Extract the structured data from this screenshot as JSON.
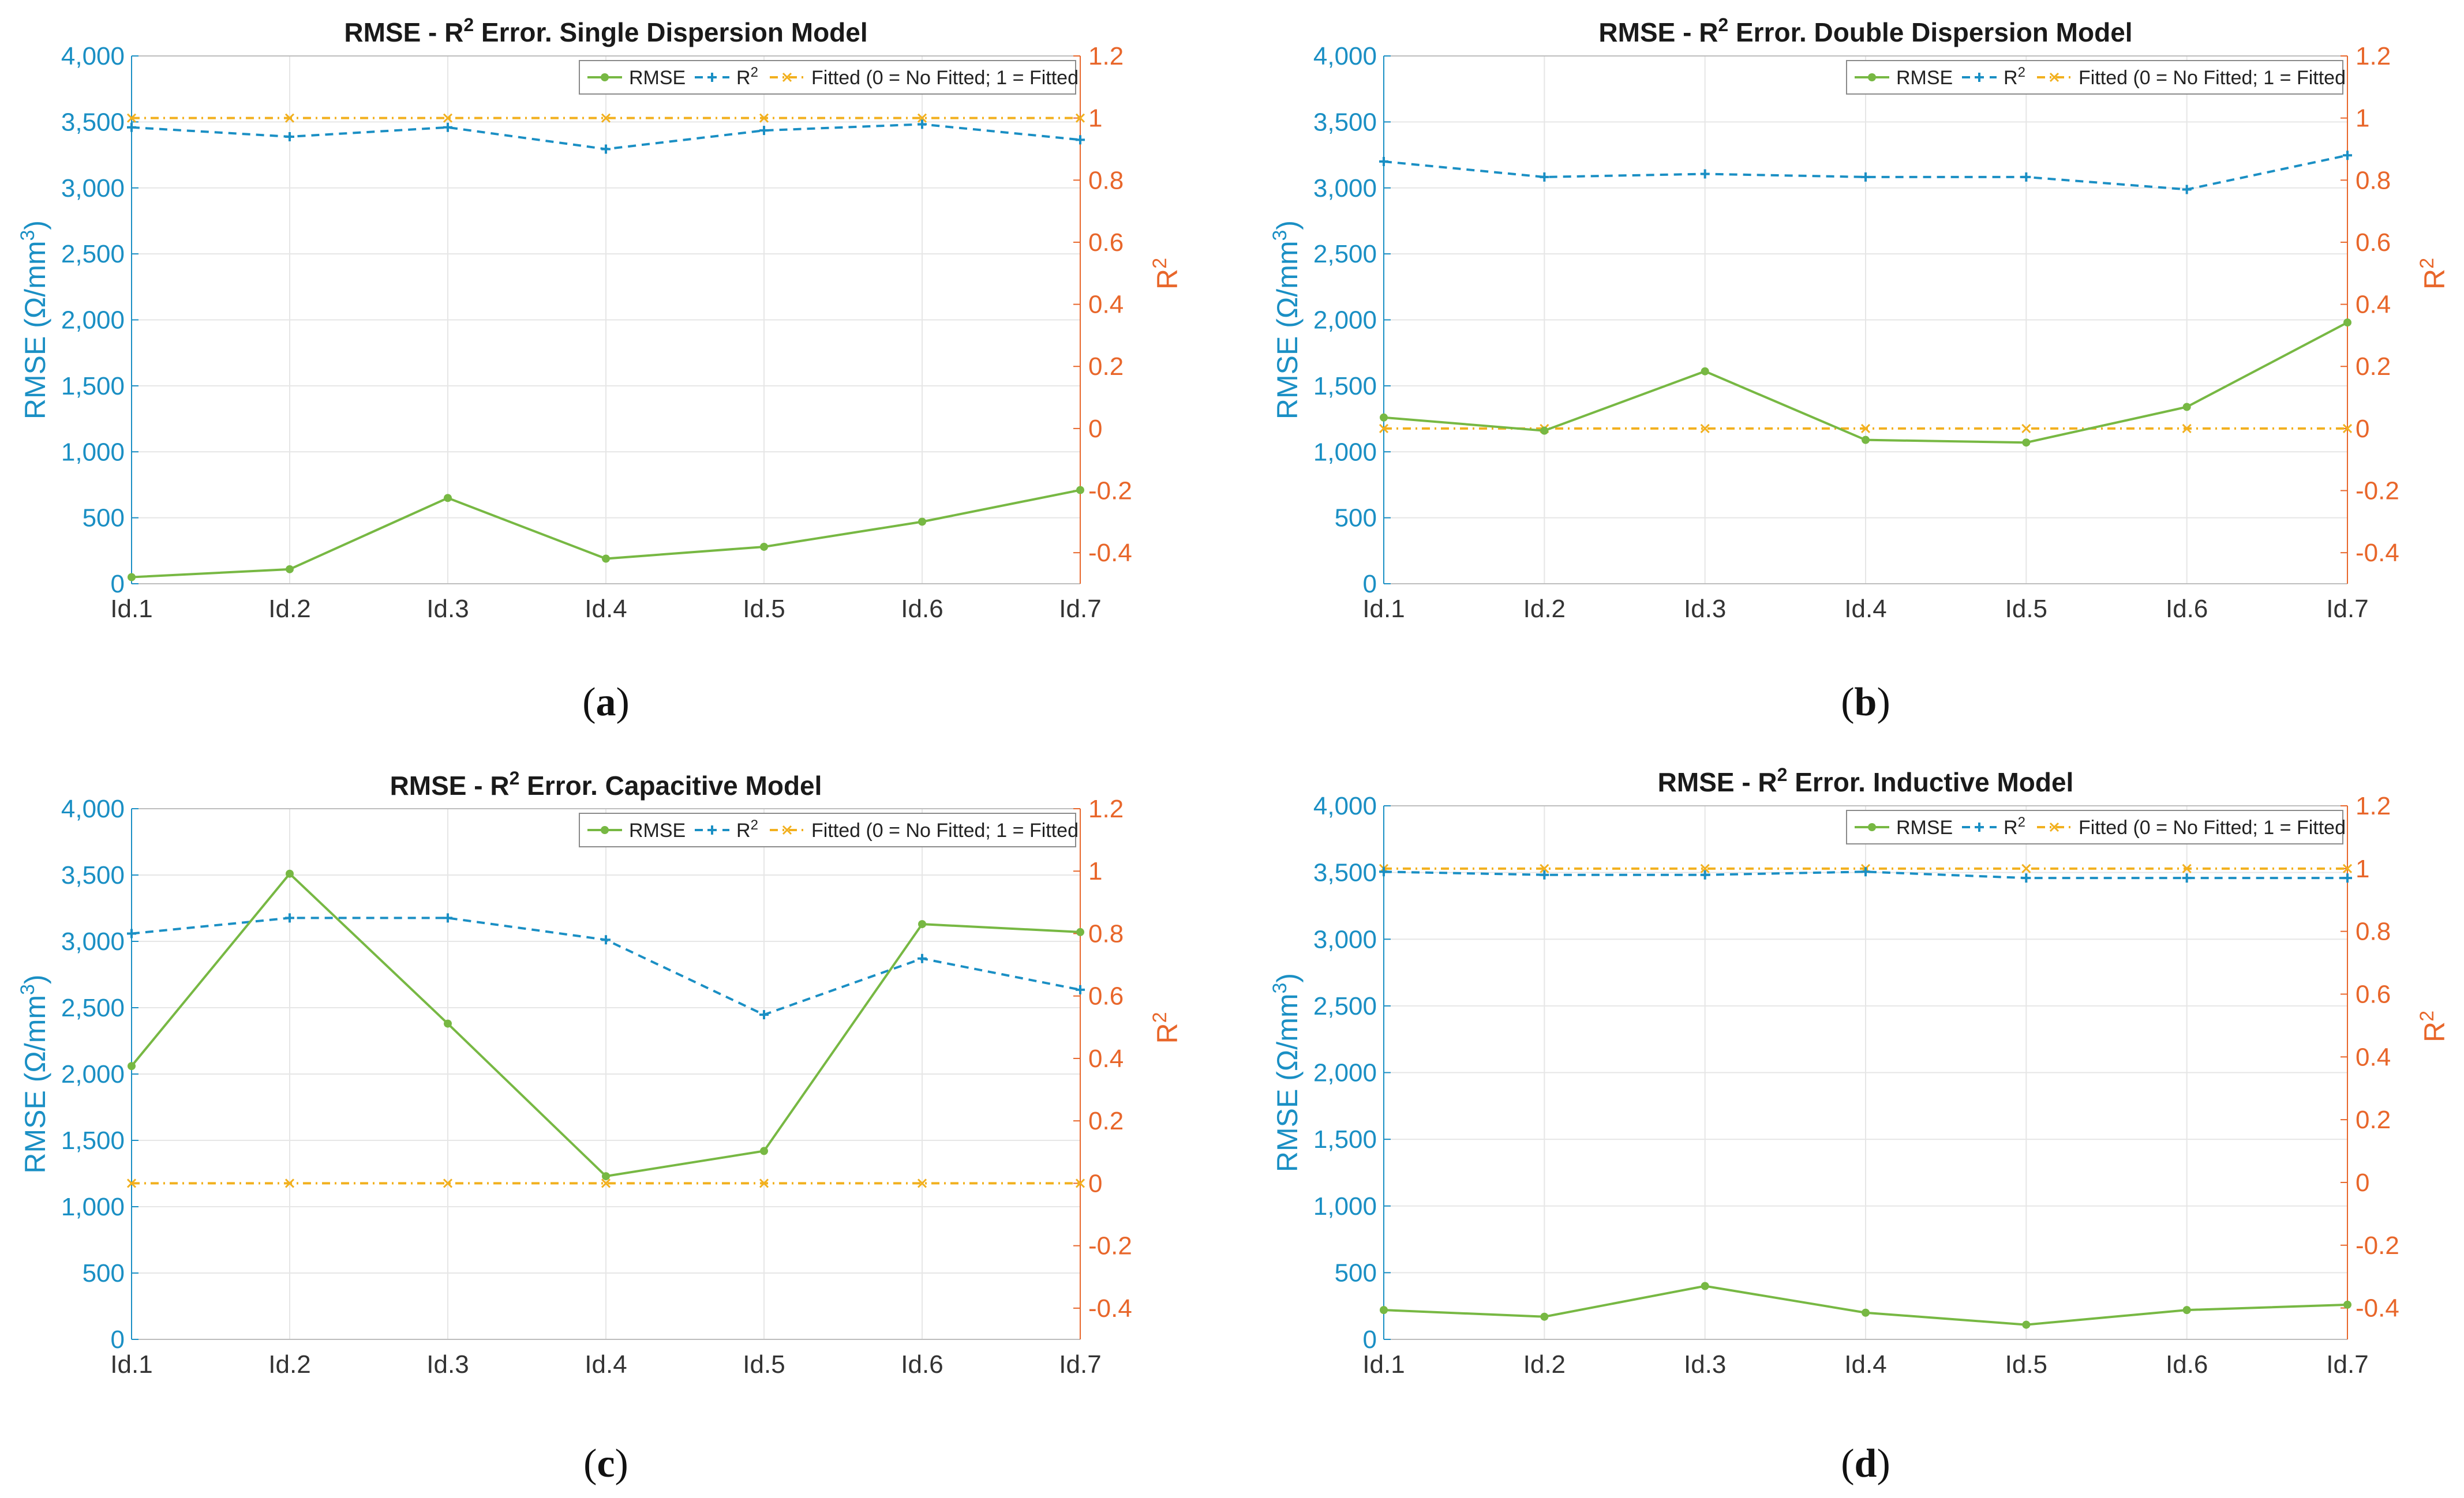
{
  "colors": {
    "rmse": "#77b843",
    "r2": "#1a8fc4",
    "fitted": "#f2b01e",
    "left_axis": "#1a8fc4",
    "right_axis": "#e8662a",
    "grid": "#e6e6e6",
    "frame": "#bdbdbd"
  },
  "legend_labels": {
    "rmse": "RMSE",
    "r2_base": "R",
    "r2_sup": "2",
    "fitted": "Fitted (0 = No Fitted; 1 = Fitted"
  },
  "axis_labels": {
    "left_main": "RMSE (Ω/mm",
    "left_sup": "3",
    "left_close": ")",
    "right_base": "R",
    "right_sup": "2"
  },
  "chart_data": [
    {
      "type": "line",
      "panel_label": "a",
      "title_prefix": "RMSE - R",
      "title_sup": "2",
      "title_suffix": " Error. Single Dispersion Model",
      "categories": [
        "Id.1",
        "Id.2",
        "Id.3",
        "Id.4",
        "Id.5",
        "Id.6",
        "Id.7"
      ],
      "y_left": {
        "label": "RMSE (Ω/mm3)",
        "min": 0,
        "max": 4000,
        "ticks": [
          "0",
          "500",
          "1,000",
          "1,500",
          "2,000",
          "2,500",
          "3,000",
          "3,500",
          "4,000"
        ]
      },
      "y_right": {
        "label": "R2",
        "min": -0.5,
        "max": 1.2,
        "ticks": [
          "-0.4",
          "-0.2",
          "0",
          "0.2",
          "0.4",
          "0.6",
          "0.8",
          "1",
          "1.2"
        ]
      },
      "series": [
        {
          "name": "RMSE",
          "axis": "left",
          "style": "solid",
          "values": [
            50,
            110,
            650,
            190,
            280,
            470,
            710
          ]
        },
        {
          "name": "R2",
          "axis": "right",
          "style": "dashed",
          "values": [
            0.97,
            0.94,
            0.97,
            0.9,
            0.96,
            0.98,
            0.93
          ]
        },
        {
          "name": "Fitted (0 = No Fitted; 1 = Fitted",
          "axis": "right",
          "style": "dashdot",
          "values": [
            1,
            1,
            1,
            1,
            1,
            1,
            1
          ]
        }
      ],
      "legend": "top-right",
      "grid": true
    },
    {
      "type": "line",
      "panel_label": "b",
      "title_prefix": "RMSE - R",
      "title_sup": "2",
      "title_suffix": " Error. Double Dispersion Model",
      "categories": [
        "Id.1",
        "Id.2",
        "Id.3",
        "Id.4",
        "Id.5",
        "Id.6",
        "Id.7"
      ],
      "y_left": {
        "label": "RMSE (Ω/mm3)",
        "min": 0,
        "max": 4000,
        "ticks": [
          "0",
          "500",
          "1,000",
          "1,500",
          "2,000",
          "2,500",
          "3,000",
          "3,500",
          "4,000"
        ]
      },
      "y_right": {
        "label": "R2",
        "min": -0.5,
        "max": 1.2,
        "ticks": [
          "-0.4",
          "-0.2",
          "0",
          "0.2",
          "0.4",
          "0.6",
          "0.8",
          "1",
          "1.2"
        ]
      },
      "series": [
        {
          "name": "RMSE",
          "axis": "left",
          "style": "solid",
          "values": [
            1260,
            1160,
            1610,
            1090,
            1070,
            1340,
            1980
          ]
        },
        {
          "name": "R2",
          "axis": "right",
          "style": "dashed",
          "values": [
            0.86,
            0.81,
            0.82,
            0.81,
            0.81,
            0.77,
            0.88
          ]
        },
        {
          "name": "Fitted (0 = No Fitted; 1 = Fitted",
          "axis": "right",
          "style": "dashdot",
          "values": [
            0,
            0,
            0,
            0,
            0,
            0,
            0
          ]
        }
      ],
      "legend": "top-right",
      "grid": true
    },
    {
      "type": "line",
      "panel_label": "c",
      "title_prefix": "RMSE - R",
      "title_sup": "2",
      "title_suffix": " Error. Capacitive Model",
      "categories": [
        "Id.1",
        "Id.2",
        "Id.3",
        "Id.4",
        "Id.5",
        "Id.6",
        "Id.7"
      ],
      "y_left": {
        "label": "RMSE (Ω/mm3)",
        "min": 0,
        "max": 4000,
        "ticks": [
          "0",
          "500",
          "1,000",
          "1,500",
          "2,000",
          "2,500",
          "3,000",
          "3,500",
          "4,000"
        ]
      },
      "y_right": {
        "label": "R2",
        "min": -0.5,
        "max": 1.2,
        "ticks": [
          "-0.4",
          "-0.2",
          "0",
          "0.2",
          "0.4",
          "0.6",
          "0.8",
          "1",
          "1.2"
        ]
      },
      "series": [
        {
          "name": "RMSE",
          "axis": "left",
          "style": "solid",
          "values": [
            2060,
            3510,
            2380,
            1230,
            1420,
            3130,
            3070
          ]
        },
        {
          "name": "R2",
          "axis": "right",
          "style": "dashed",
          "values": [
            0.8,
            0.85,
            0.85,
            0.78,
            0.54,
            0.72,
            0.62
          ]
        },
        {
          "name": "Fitted (0 = No Fitted; 1 = Fitted",
          "axis": "right",
          "style": "dashdot",
          "values": [
            0,
            0,
            0,
            0,
            0,
            0,
            0
          ]
        }
      ],
      "legend": "top-right",
      "grid": true
    },
    {
      "type": "line",
      "panel_label": "d",
      "title_prefix": "RMSE - R",
      "title_sup": "2",
      "title_suffix": " Error. Inductive Model",
      "categories": [
        "Id.1",
        "Id.2",
        "Id.3",
        "Id.4",
        "Id.5",
        "Id.6",
        "Id.7"
      ],
      "y_left": {
        "label": "RMSE (Ω/mm3)",
        "min": 0,
        "max": 4000,
        "ticks": [
          "0",
          "500",
          "1,000",
          "1,500",
          "2,000",
          "2,500",
          "3,000",
          "3,500",
          "4,000"
        ]
      },
      "y_right": {
        "label": "R2",
        "min": -0.5,
        "max": 1.2,
        "ticks": [
          "-0.4",
          "-0.2",
          "0",
          "0.2",
          "0.4",
          "0.6",
          "0.8",
          "1",
          "1.2"
        ]
      },
      "series": [
        {
          "name": "RMSE",
          "axis": "left",
          "style": "solid",
          "values": [
            220,
            170,
            400,
            200,
            110,
            220,
            260
          ]
        },
        {
          "name": "R2",
          "axis": "right",
          "style": "dashed",
          "values": [
            0.99,
            0.98,
            0.98,
            0.99,
            0.97,
            0.97,
            0.97
          ]
        },
        {
          "name": "Fitted (0 = No Fitted; 1 = Fitted",
          "axis": "right",
          "style": "dashdot",
          "values": [
            1,
            1,
            1,
            1,
            1,
            1,
            1
          ]
        }
      ],
      "legend": "top-right",
      "grid": true
    }
  ]
}
